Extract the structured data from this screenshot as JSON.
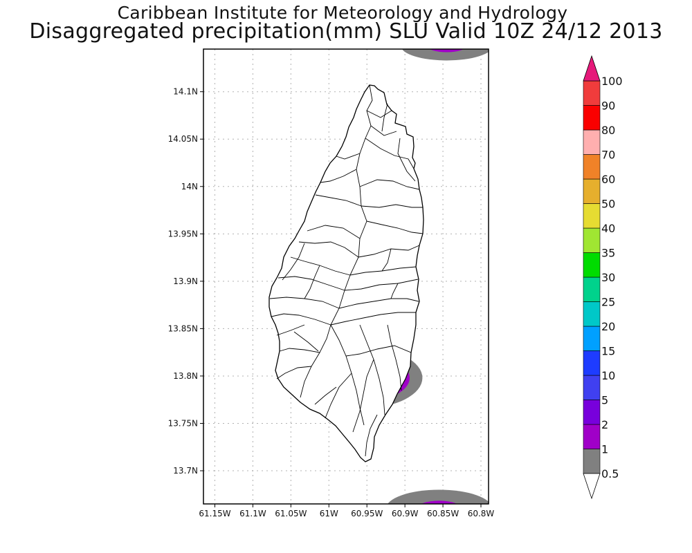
{
  "title_line1": "Caribbean Institute for Meteorology and Hydrology",
  "title_line2": "Disaggregated precipitation(mm) SLU Valid 10Z 24/12 2013",
  "map": {
    "lon_range": [
      -61.165,
      -60.79
    ],
    "lat_range": [
      13.665,
      14.145
    ],
    "lon_ticks": [
      {
        "value": -61.15,
        "label": "61.15W"
      },
      {
        "value": -61.1,
        "label": "61.1W"
      },
      {
        "value": -61.05,
        "label": "61.05W"
      },
      {
        "value": -61.0,
        "label": "61W"
      },
      {
        "value": -60.95,
        "label": "60.95W"
      },
      {
        "value": -60.9,
        "label": "60.9W"
      },
      {
        "value": -60.85,
        "label": "60.85W"
      },
      {
        "value": -60.8,
        "label": "60.8W"
      }
    ],
    "lat_ticks": [
      {
        "value": 14.1,
        "label": "14.1N"
      },
      {
        "value": 14.05,
        "label": "14.05N"
      },
      {
        "value": 14.0,
        "label": "14N"
      },
      {
        "value": 13.95,
        "label": "13.95N"
      },
      {
        "value": 13.9,
        "label": "13.9N"
      },
      {
        "value": 13.85,
        "label": "13.85N"
      },
      {
        "value": 13.8,
        "label": "13.8N"
      },
      {
        "value": 13.75,
        "label": "13.75N"
      },
      {
        "value": 13.7,
        "label": "13.7N"
      }
    ],
    "grid": true
  },
  "colorbar": {
    "levels": [
      "0.5",
      "1",
      "2",
      "5",
      "10",
      "15",
      "20",
      "25",
      "30",
      "35",
      "40",
      "50",
      "60",
      "70",
      "80",
      "90",
      "100"
    ],
    "colors": [
      "#808080",
      "#a000c8",
      "#7800dc",
      "#4040f0",
      "#1e3cff",
      "#00a0ff",
      "#00c8c8",
      "#00d28c",
      "#00dc00",
      "#a0e632",
      "#e6dc32",
      "#e6af2d",
      "#f08228",
      "#ffafaf",
      "#fa0000",
      "#f03c3c"
    ],
    "under_color": "#ffffff",
    "over_color": "#e6197a"
  },
  "precip_areas": [
    {
      "center": [
        -60.955,
        13.798
      ],
      "rx_deg": 0.078,
      "ry_deg": 0.032,
      "levels": [
        "#808080",
        "#a000c8",
        "#7800dc",
        "#4040f0"
      ]
    },
    {
      "center": [
        -60.845,
        14.148
      ],
      "rx_deg": 0.06,
      "ry_deg": 0.015,
      "levels": [
        "#808080",
        "#a000c8"
      ]
    },
    {
      "center": [
        -60.855,
        13.66
      ],
      "rx_deg": 0.07,
      "ry_deg": 0.02,
      "levels": [
        "#808080",
        "#a000c8"
      ]
    }
  ]
}
